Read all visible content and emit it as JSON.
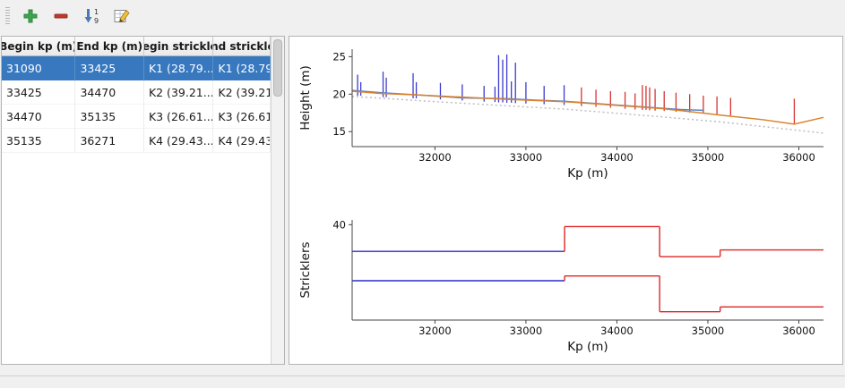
{
  "toolbar": {
    "buttons": [
      {
        "name": "add",
        "icon": "plus-icon"
      },
      {
        "name": "remove",
        "icon": "minus-icon"
      },
      {
        "name": "sort",
        "icon": "sort-numeric-icon"
      },
      {
        "name": "edit",
        "icon": "edit-table-icon"
      }
    ]
  },
  "table": {
    "columns": [
      "Begin kp (m)",
      "End kp (m)",
      "Begin strickler",
      "End strickler"
    ],
    "rows": [
      {
        "cells": [
          "31090",
          "33425",
          "K1 (28.79...",
          "K1 (28.79..."
        ],
        "selected": true
      },
      {
        "cells": [
          "33425",
          "34470",
          "K2 (39.21...",
          "K2 (39.21..."
        ],
        "selected": false
      },
      {
        "cells": [
          "34470",
          "35135",
          "K3 (26.61...",
          "K3 (26.61..."
        ],
        "selected": false
      },
      {
        "cells": [
          "35135",
          "36271",
          "K4 (29.43...",
          "K4 (29.43..."
        ],
        "selected": false
      }
    ]
  },
  "colors": {
    "selection": "#3778bf",
    "orange_line": "#d9822b",
    "blue_line": "#5b84c4",
    "dotted_line": "#bdbdbd",
    "vline_blue": "#3b3bd1",
    "vline_red": "#d53434",
    "step_blue": "#2c2cc8",
    "step_red": "#e02525"
  },
  "chart_data": [
    {
      "type": "line",
      "name": "height-profile",
      "title": "",
      "xlabel": "Kp (m)",
      "ylabel": "Height (m)",
      "xlim": [
        31090,
        36271
      ],
      "ylim": [
        13,
        26
      ],
      "xticks": [
        32000,
        33000,
        34000,
        35000,
        36000
      ],
      "yticks": [
        15,
        20,
        25
      ],
      "grid": false,
      "series": [
        {
          "name": "dashed-reference-line",
          "color": "#bdbdbd",
          "style": "dotted",
          "x": [
            31090,
            32000,
            33000,
            33425,
            34470,
            35135,
            36271
          ],
          "y": [
            19.7,
            19.0,
            18.3,
            18.0,
            17.0,
            16.3,
            14.8
          ]
        },
        {
          "name": "water-level-line",
          "color": "#5b84c4",
          "x": [
            31090,
            31400,
            31800,
            32300,
            32800,
            33100,
            33425,
            34000,
            34470,
            34700,
            34950
          ],
          "y": [
            20.5,
            20.2,
            19.9,
            19.5,
            19.4,
            19.2,
            19.05,
            18.55,
            18.15,
            17.95,
            17.85
          ]
        },
        {
          "name": "bed-profile-line",
          "color": "#d9822b",
          "x": [
            31090,
            31400,
            31800,
            32300,
            32800,
            33425,
            34000,
            34470,
            35000,
            35135,
            35600,
            35950,
            36271
          ],
          "y": [
            20.4,
            20.1,
            19.9,
            19.6,
            19.3,
            19.0,
            18.5,
            18.1,
            17.4,
            17.2,
            16.6,
            16.0,
            16.9
          ]
        }
      ],
      "vlines": [
        {
          "kp": 31150,
          "y0": 19.8,
          "y1": 22.6,
          "color": "blue"
        },
        {
          "kp": 31185,
          "y0": 19.8,
          "y1": 21.6,
          "color": "blue"
        },
        {
          "kp": 31430,
          "y0": 19.6,
          "y1": 23.0,
          "color": "blue"
        },
        {
          "kp": 31465,
          "y0": 19.6,
          "y1": 22.2,
          "color": "blue"
        },
        {
          "kp": 31760,
          "y0": 19.45,
          "y1": 22.8,
          "color": "blue"
        },
        {
          "kp": 31795,
          "y0": 19.45,
          "y1": 21.6,
          "color": "blue"
        },
        {
          "kp": 32060,
          "y0": 19.3,
          "y1": 21.5,
          "color": "blue"
        },
        {
          "kp": 32300,
          "y0": 19.15,
          "y1": 21.3,
          "color": "blue"
        },
        {
          "kp": 32540,
          "y0": 19.0,
          "y1": 21.1,
          "color": "blue"
        },
        {
          "kp": 32660,
          "y0": 18.95,
          "y1": 21.0,
          "color": "blue"
        },
        {
          "kp": 32700,
          "y0": 18.9,
          "y1": 25.2,
          "color": "blue"
        },
        {
          "kp": 32745,
          "y0": 18.9,
          "y1": 24.6,
          "color": "blue"
        },
        {
          "kp": 32790,
          "y0": 18.85,
          "y1": 25.3,
          "color": "blue"
        },
        {
          "kp": 32840,
          "y0": 18.85,
          "y1": 21.7,
          "color": "blue"
        },
        {
          "kp": 32885,
          "y0": 18.8,
          "y1": 24.2,
          "color": "blue"
        },
        {
          "kp": 33000,
          "y0": 18.75,
          "y1": 21.6,
          "color": "blue"
        },
        {
          "kp": 33200,
          "y0": 18.65,
          "y1": 21.1,
          "color": "blue"
        },
        {
          "kp": 33420,
          "y0": 18.55,
          "y1": 21.2,
          "color": "blue"
        },
        {
          "kp": 33610,
          "y0": 18.4,
          "y1": 20.9,
          "color": "red"
        },
        {
          "kp": 33770,
          "y0": 18.3,
          "y1": 20.6,
          "color": "red"
        },
        {
          "kp": 33930,
          "y0": 18.2,
          "y1": 20.4,
          "color": "red"
        },
        {
          "kp": 34090,
          "y0": 18.05,
          "y1": 20.3,
          "color": "red"
        },
        {
          "kp": 34200,
          "y0": 17.95,
          "y1": 20.1,
          "color": "red"
        },
        {
          "kp": 34280,
          "y0": 17.9,
          "y1": 21.2,
          "color": "red"
        },
        {
          "kp": 34320,
          "y0": 17.9,
          "y1": 21.1,
          "color": "red"
        },
        {
          "kp": 34360,
          "y0": 17.85,
          "y1": 20.9,
          "color": "red"
        },
        {
          "kp": 34420,
          "y0": 17.8,
          "y1": 20.7,
          "color": "red"
        },
        {
          "kp": 34520,
          "y0": 17.75,
          "y1": 20.4,
          "color": "red"
        },
        {
          "kp": 34650,
          "y0": 17.65,
          "y1": 20.2,
          "color": "red"
        },
        {
          "kp": 34800,
          "y0": 17.55,
          "y1": 20.0,
          "color": "red"
        },
        {
          "kp": 34950,
          "y0": 17.45,
          "y1": 19.8,
          "color": "red"
        },
        {
          "kp": 35100,
          "y0": 17.3,
          "y1": 19.7,
          "color": "red"
        },
        {
          "kp": 35250,
          "y0": 17.15,
          "y1": 19.5,
          "color": "red"
        },
        {
          "kp": 35950,
          "y0": 16.1,
          "y1": 19.4,
          "color": "red"
        }
      ]
    },
    {
      "type": "step",
      "name": "stricklers",
      "title": "",
      "xlabel": "Kp (m)",
      "ylabel": "Stricklers",
      "xlim": [
        31090,
        36271
      ],
      "ylim": [
        0,
        42
      ],
      "xticks": [
        32000,
        33000,
        34000,
        35000,
        36000
      ],
      "yticks": [
        40
      ],
      "grid": false,
      "series": [
        {
          "name": "strickler-upper-step",
          "segments": [
            {
              "x0": 31090,
              "x1": 33425,
              "v": 28.79,
              "color": "blue"
            },
            {
              "x0": 33425,
              "x1": 34470,
              "v": 39.21,
              "color": "red"
            },
            {
              "x0": 34470,
              "x1": 35135,
              "v": 26.61,
              "color": "red"
            },
            {
              "x0": 35135,
              "x1": 36271,
              "v": 29.43,
              "color": "red"
            }
          ]
        },
        {
          "name": "strickler-lower-step",
          "segments": [
            {
              "x0": 31090,
              "x1": 33425,
              "v": 16.5,
              "color": "blue"
            },
            {
              "x0": 33425,
              "x1": 34470,
              "v": 18.5,
              "color": "red"
            },
            {
              "x0": 34470,
              "x1": 35135,
              "v": 3.5,
              "color": "red"
            },
            {
              "x0": 35135,
              "x1": 36271,
              "v": 5.5,
              "color": "red"
            }
          ]
        }
      ]
    }
  ]
}
